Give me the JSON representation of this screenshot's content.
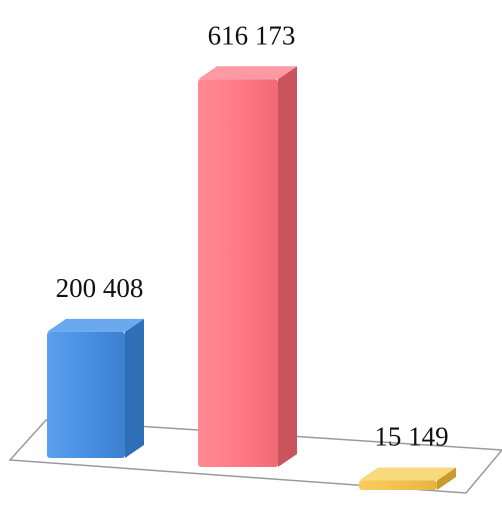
{
  "chart_data": {
    "type": "bar",
    "style": "3d-columns",
    "categories": [
      "",
      "",
      ""
    ],
    "values": [
      200408,
      616173,
      15149
    ],
    "data_labels": [
      "200 408",
      "616 173",
      "15 149"
    ],
    "ylim": [
      0,
      650000
    ],
    "grid": false,
    "legend": "none",
    "colors": {
      "bars": [
        "#4a90e2",
        "#ff7a85",
        "#f2c24f"
      ],
      "bar_sides": [
        "#2f6fb8",
        "#c9545e",
        "#c99a2e"
      ],
      "bar_tops": [
        "#6aa9ee",
        "#ff9aa3",
        "#f8d97e"
      ],
      "floor_fill": "#ffffff",
      "floor_stroke": "#9a9a9a"
    }
  }
}
